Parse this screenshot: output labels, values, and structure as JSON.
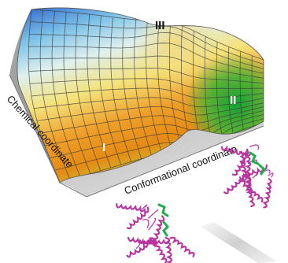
{
  "axes": {
    "chemical": "Chemical coordinate",
    "conformational": "Conformational coordinate"
  },
  "states": {
    "one": "I",
    "two": "II",
    "three": "III"
  },
  "colors": {
    "blue": "#2f6fd0",
    "cyan": "#bfe6f0",
    "yellow": "#f3e06a",
    "orange": "#e88a12",
    "green": "#1ea23c",
    "wall": "#9b9b9b",
    "protein": "#c03fb7",
    "ligand": "#24b04a"
  },
  "icons": [
    "protein-structure-icon",
    "ligand-icon"
  ]
}
